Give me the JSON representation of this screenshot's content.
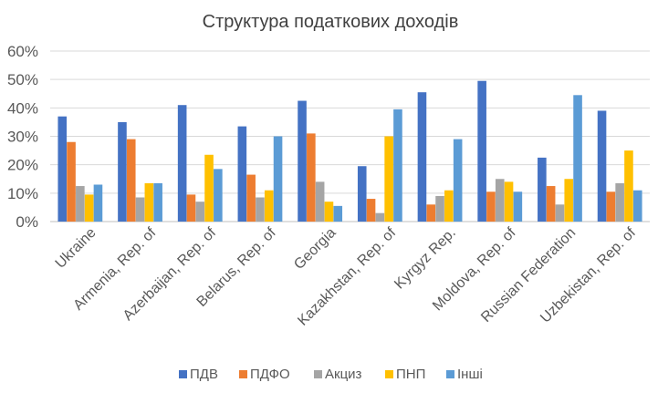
{
  "chart_data": {
    "type": "bar",
    "title": "Структура податкових доходів",
    "categories": [
      "Ukraine",
      "Armenia, Rep. of",
      "Azerbaijan, Rep. of",
      "Belarus, Rep. of",
      "Georgia",
      "Kazakhstan, Rep. of",
      "Kyrgyz Rep.",
      "Moldova, Rep. of",
      "Russian Federation",
      "Uzbekistan, Rep. of"
    ],
    "series": [
      {
        "name": "ПДВ",
        "color": "#4472C4",
        "values": [
          37,
          35,
          41,
          33.5,
          42.5,
          19.5,
          45.5,
          49.5,
          22.5,
          39
        ]
      },
      {
        "name": "ПДФО",
        "color": "#ED7D31",
        "values": [
          28,
          29,
          9.5,
          16.5,
          31,
          8,
          6,
          10.5,
          12.5,
          10.5
        ]
      },
      {
        "name": "Акциз",
        "color": "#A5A5A5",
        "values": [
          12.5,
          8.5,
          7,
          8.5,
          14,
          3,
          9,
          15,
          6,
          13.5
        ]
      },
      {
        "name": "ПНП",
        "color": "#FFC000",
        "values": [
          9.5,
          13.5,
          23.5,
          11,
          7,
          30,
          11,
          14,
          15,
          25
        ]
      },
      {
        "name": "Інші",
        "color": "#5B9BD5",
        "values": [
          13,
          13.5,
          18.5,
          30,
          5.5,
          39.5,
          29,
          10.5,
          44.5,
          11
        ]
      }
    ],
    "yticks": [
      "0%",
      "10%",
      "20%",
      "30%",
      "40%",
      "50%",
      "60%"
    ],
    "ylim": [
      0,
      60
    ],
    "grid": true,
    "legend": "bottom"
  }
}
